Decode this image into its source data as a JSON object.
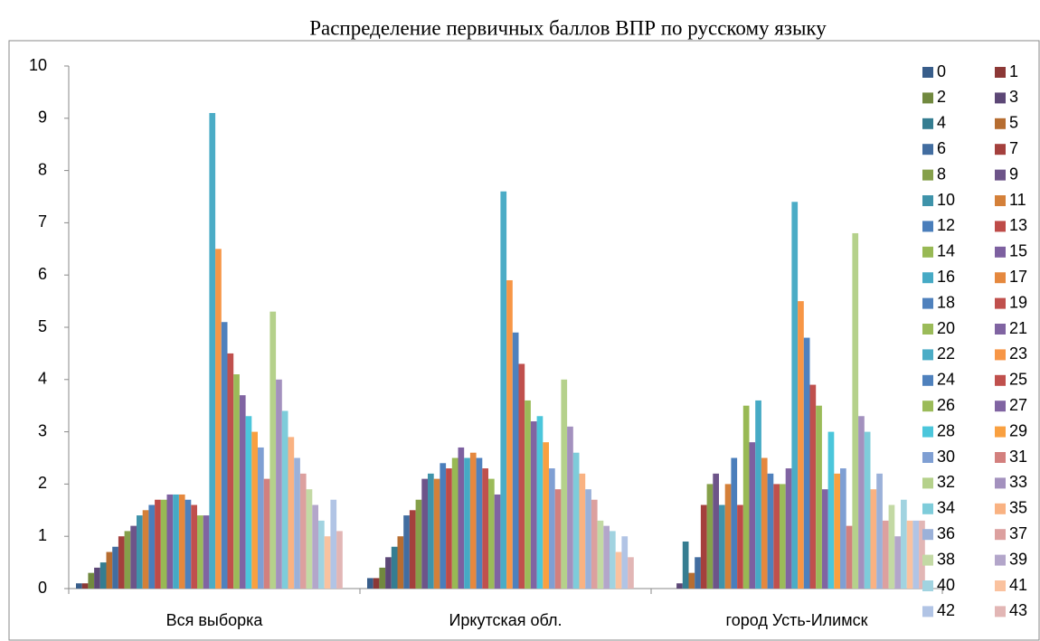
{
  "chart_data": {
    "type": "bar",
    "title": "Распределение первичных баллов ВПР по русскому языку",
    "categories": [
      "Вся выборка",
      "Иркутская обл.",
      "город Усть-Илимск"
    ],
    "ylim": [
      0,
      10
    ],
    "yticks": [
      0,
      1,
      2,
      3,
      4,
      5,
      6,
      7,
      8,
      9,
      10
    ],
    "grid": false,
    "legend": "right",
    "series": [
      {
        "name": "0",
        "color": "#385D8A",
        "values": [
          0.1,
          0.2,
          0
        ]
      },
      {
        "name": "1",
        "color": "#8C3836",
        "values": [
          0.1,
          0.2,
          0
        ]
      },
      {
        "name": "2",
        "color": "#71893F",
        "values": [
          0.3,
          0.4,
          0
        ]
      },
      {
        "name": "3",
        "color": "#5C4776",
        "values": [
          0.4,
          0.6,
          0.1
        ]
      },
      {
        "name": "4",
        "color": "#357D91",
        "values": [
          0.5,
          0.8,
          0.9
        ]
      },
      {
        "name": "5",
        "color": "#B66D31",
        "values": [
          0.7,
          1.0,
          0.3
        ]
      },
      {
        "name": "6",
        "color": "#426DA0",
        "values": [
          0.8,
          1.4,
          0.6
        ]
      },
      {
        "name": "7",
        "color": "#A4403D",
        "values": [
          1.0,
          1.5,
          1.6
        ]
      },
      {
        "name": "8",
        "color": "#85A04A",
        "values": [
          1.1,
          1.7,
          2.0
        ]
      },
      {
        "name": "9",
        "color": "#6D5489",
        "values": [
          1.2,
          2.1,
          2.2
        ]
      },
      {
        "name": "10",
        "color": "#3F93AA",
        "values": [
          1.4,
          2.2,
          1.6
        ]
      },
      {
        "name": "11",
        "color": "#D48039",
        "values": [
          1.5,
          2.1,
          2.0
        ]
      },
      {
        "name": "12",
        "color": "#4A7EBB",
        "values": [
          1.6,
          2.4,
          2.5
        ]
      },
      {
        "name": "13",
        "color": "#BE4B48",
        "values": [
          1.7,
          2.3,
          1.6
        ]
      },
      {
        "name": "14",
        "color": "#98B954",
        "values": [
          1.7,
          2.5,
          3.5
        ]
      },
      {
        "name": "15",
        "color": "#7D60A0",
        "values": [
          1.8,
          2.7,
          2.8
        ]
      },
      {
        "name": "16",
        "color": "#46AAC5",
        "values": [
          1.8,
          2.5,
          3.6
        ]
      },
      {
        "name": "17",
        "color": "#E5883E",
        "values": [
          1.8,
          2.6,
          2.5
        ]
      },
      {
        "name": "18",
        "color": "#4F81BD",
        "values": [
          1.7,
          2.5,
          2.2
        ]
      },
      {
        "name": "19",
        "color": "#C0504D",
        "values": [
          1.6,
          2.3,
          2.0
        ]
      },
      {
        "name": "20",
        "color": "#9BBB59",
        "values": [
          1.4,
          2.1,
          2.0
        ]
      },
      {
        "name": "21",
        "color": "#8064A2",
        "values": [
          1.4,
          1.8,
          2.3
        ]
      },
      {
        "name": "22",
        "color": "#4BACC6",
        "values": [
          9.1,
          7.6,
          7.4
        ]
      },
      {
        "name": "23",
        "color": "#F79646",
        "values": [
          6.5,
          5.9,
          5.5
        ]
      },
      {
        "name": "24",
        "color": "#4F81BD",
        "values": [
          5.1,
          4.9,
          4.8
        ]
      },
      {
        "name": "25",
        "color": "#C0504D",
        "values": [
          4.5,
          4.3,
          3.9
        ]
      },
      {
        "name": "26",
        "color": "#9BBB59",
        "values": [
          4.1,
          3.6,
          3.5
        ]
      },
      {
        "name": "27",
        "color": "#8064A2",
        "values": [
          3.7,
          3.2,
          1.9
        ]
      },
      {
        "name": "28",
        "color": "#4BC6DB",
        "values": [
          3.3,
          3.3,
          3.0
        ]
      },
      {
        "name": "29",
        "color": "#F9A040",
        "values": [
          3.0,
          2.8,
          2.2
        ]
      },
      {
        "name": "30",
        "color": "#7F9FD3",
        "values": [
          2.7,
          2.3,
          2.3
        ]
      },
      {
        "name": "31",
        "color": "#D3807E",
        "values": [
          2.1,
          1.9,
          1.2
        ]
      },
      {
        "name": "32",
        "color": "#B5D18B",
        "values": [
          5.3,
          4.0,
          6.8
        ]
      },
      {
        "name": "33",
        "color": "#A391BE",
        "values": [
          4.0,
          3.1,
          3.3
        ]
      },
      {
        "name": "34",
        "color": "#7ECCDA",
        "values": [
          3.4,
          2.6,
          3.0
        ]
      },
      {
        "name": "35",
        "color": "#F9B282",
        "values": [
          2.9,
          2.2,
          1.9
        ]
      },
      {
        "name": "36",
        "color": "#9BB1D9",
        "values": [
          2.5,
          1.9,
          2.2
        ]
      },
      {
        "name": "37",
        "color": "#DCA09F",
        "values": [
          2.2,
          1.7,
          1.3
        ]
      },
      {
        "name": "38",
        "color": "#C3D9A4",
        "values": [
          1.9,
          1.3,
          1.6
        ]
      },
      {
        "name": "39",
        "color": "#B3A6CA",
        "values": [
          1.6,
          1.2,
          1.0
        ]
      },
      {
        "name": "40",
        "color": "#A1D3E0",
        "values": [
          1.3,
          1.1,
          1.7
        ]
      },
      {
        "name": "41",
        "color": "#FAC29F",
        "values": [
          1.0,
          0.7,
          1.3
        ]
      },
      {
        "name": "42",
        "color": "#B1C4E5",
        "values": [
          1.7,
          1.0,
          1.3
        ]
      },
      {
        "name": "43",
        "color": "#E2B6B5",
        "values": [
          1.1,
          0.6,
          1.3
        ]
      }
    ]
  }
}
